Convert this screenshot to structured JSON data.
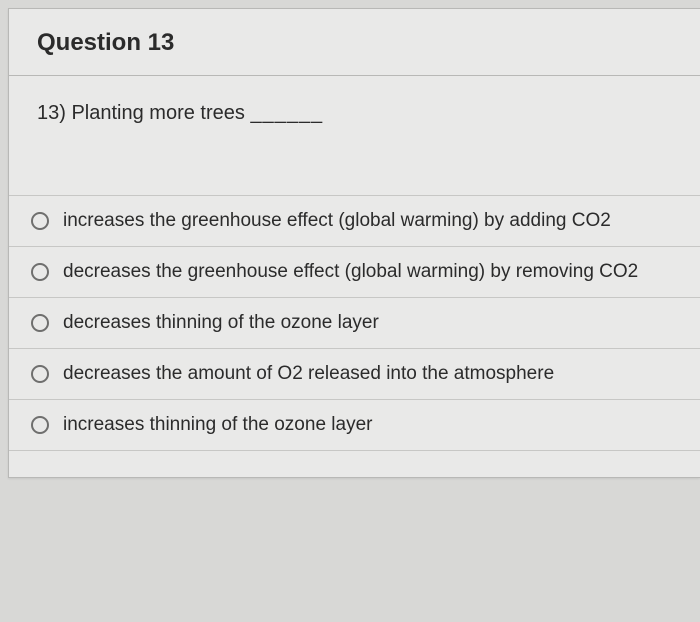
{
  "card": {
    "title": "Question 13",
    "question_text": "13) Planting more trees ",
    "blank": "______",
    "options": [
      {
        "label": "increases the greenhouse effect (global warming) by adding CO2"
      },
      {
        "label": "decreases the greenhouse effect (global warming) by removing CO2"
      },
      {
        "label": "decreases thinning of the ozone layer"
      },
      {
        "label": "decreases the amount of O2 released into the atmosphere"
      },
      {
        "label": "increases thinning of the ozone layer"
      }
    ]
  },
  "style": {
    "background_color": "#d8d8d6",
    "card_background": "#e9e9e8",
    "border_color": "#b8b8b6",
    "option_border_color": "#c7c7c5",
    "text_color": "#2b2b2b",
    "radio_border_color": "#6f6f6e",
    "title_fontsize": 24,
    "question_fontsize": 20,
    "option_fontsize": 19,
    "font_family": "Helvetica Neue, Helvetica, Arial, sans-serif"
  }
}
